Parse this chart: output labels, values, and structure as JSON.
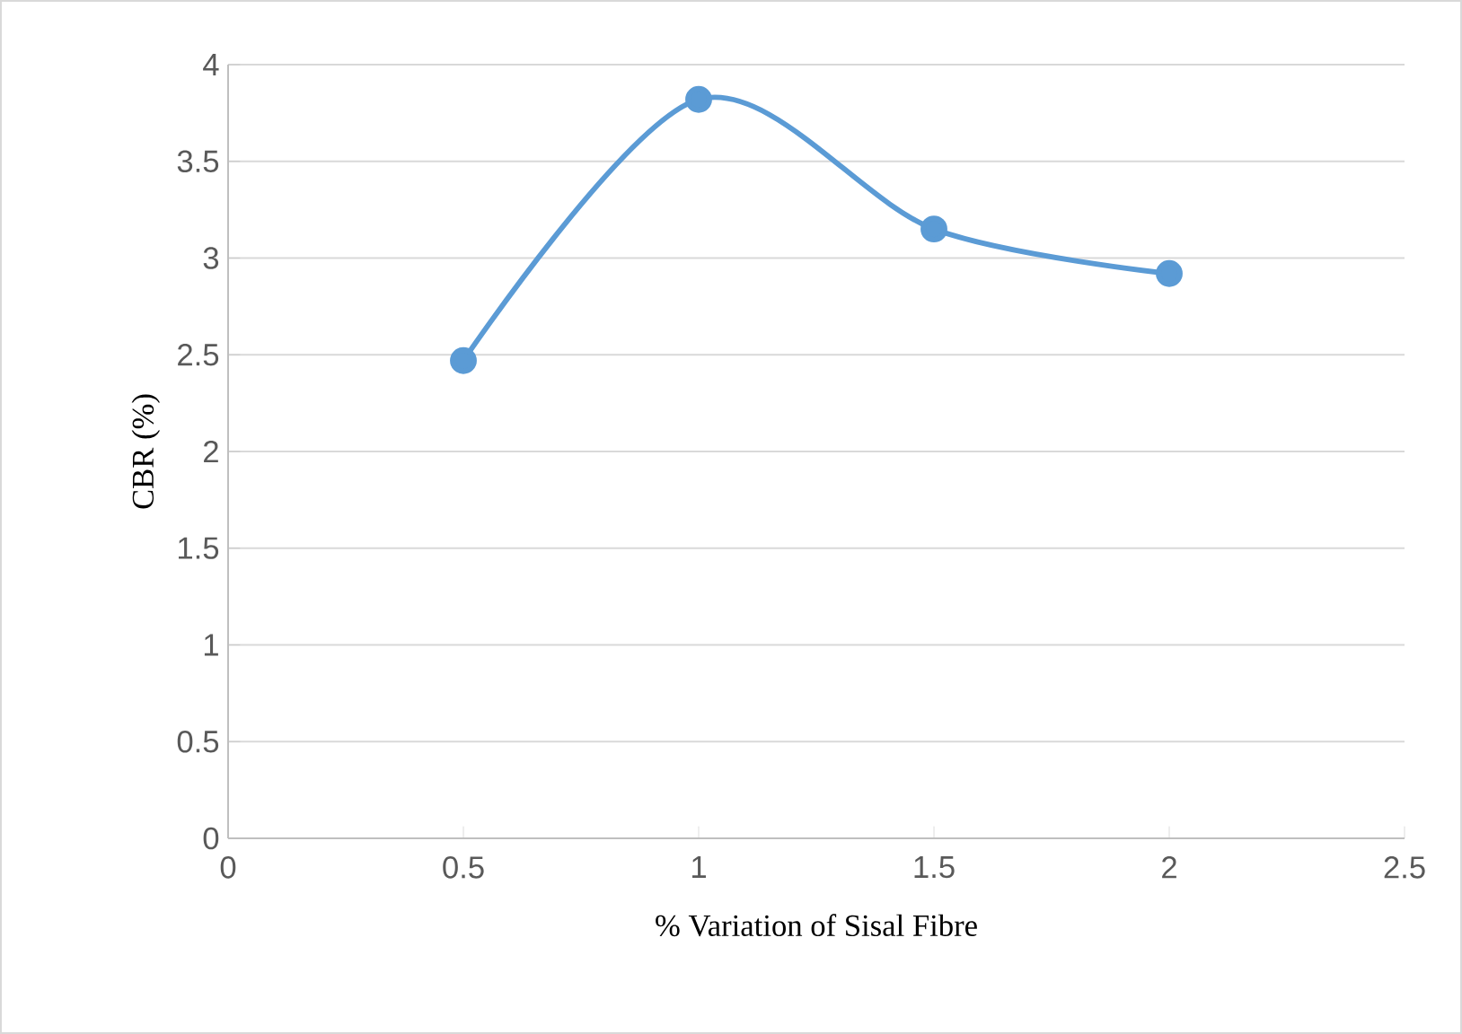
{
  "chart_data": {
    "type": "line",
    "xlabel": "% Variation of Sisal Fibre",
    "ylabel": "CBR (%)",
    "x": [
      0.5,
      1,
      1.5,
      2
    ],
    "series": [
      {
        "color": "#5b9bd5",
        "values": [
          2.47,
          3.82,
          3.15,
          2.92
        ]
      }
    ],
    "xlim": [
      0,
      2.5
    ],
    "xticks": [
      0,
      0.5,
      1,
      1.5,
      2,
      2.5
    ],
    "ylim": [
      0,
      4
    ],
    "yticks": [
      0,
      0.5,
      1,
      1.5,
      2,
      2.5,
      3,
      3.5,
      4
    ],
    "grid": "y",
    "marker": "circle",
    "line_style": "solid"
  }
}
